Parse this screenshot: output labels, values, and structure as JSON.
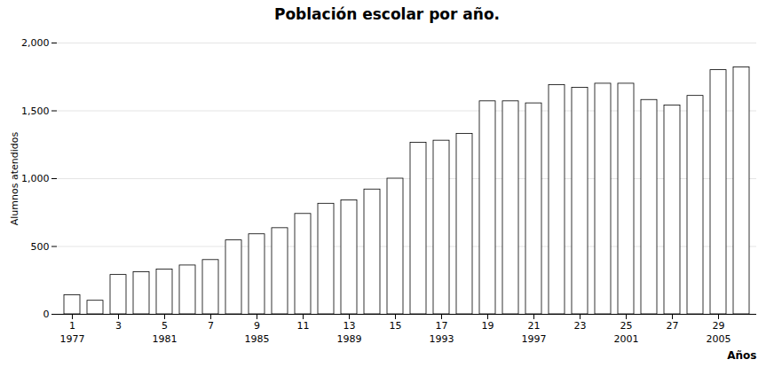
{
  "chart_data": {
    "type": "bar",
    "title": "Población escolar por año.",
    "xlabel": "Años",
    "ylabel": "Alumnos atendidos",
    "categories": [
      "1",
      null,
      "3",
      null,
      "5",
      null,
      "7",
      null,
      "9",
      null,
      "11",
      null,
      "13",
      null,
      "15",
      null,
      "17",
      null,
      "19",
      null,
      "21",
      null,
      "23",
      null,
      "25",
      null,
      "27",
      null,
      "29",
      null
    ],
    "values": [
      140,
      100,
      290,
      310,
      330,
      360,
      400,
      545,
      590,
      635,
      740,
      815,
      840,
      920,
      1000,
      1265,
      1280,
      1330,
      1570,
      1570,
      1555,
      1690,
      1670,
      1700,
      1700,
      1580,
      1540,
      1610,
      1800,
      1820
    ],
    "color": "#ffffff",
    "ylim": [
      0,
      2000
    ],
    "yticks": [
      0,
      500,
      1000,
      1500,
      2000
    ],
    "grid": true,
    "annotations": [
      {
        "text": "1977",
        "x": "1"
      },
      {
        "text": "1981",
        "x": "5"
      },
      {
        "text": "1985",
        "x": "9"
      },
      {
        "text": "1989",
        "x": "13"
      },
      {
        "text": "1993",
        "x": "17"
      },
      {
        "text": "1997",
        "x": "21"
      },
      {
        "text": "2001",
        "x": "25"
      },
      {
        "text": "2005",
        "x": "29"
      }
    ]
  }
}
